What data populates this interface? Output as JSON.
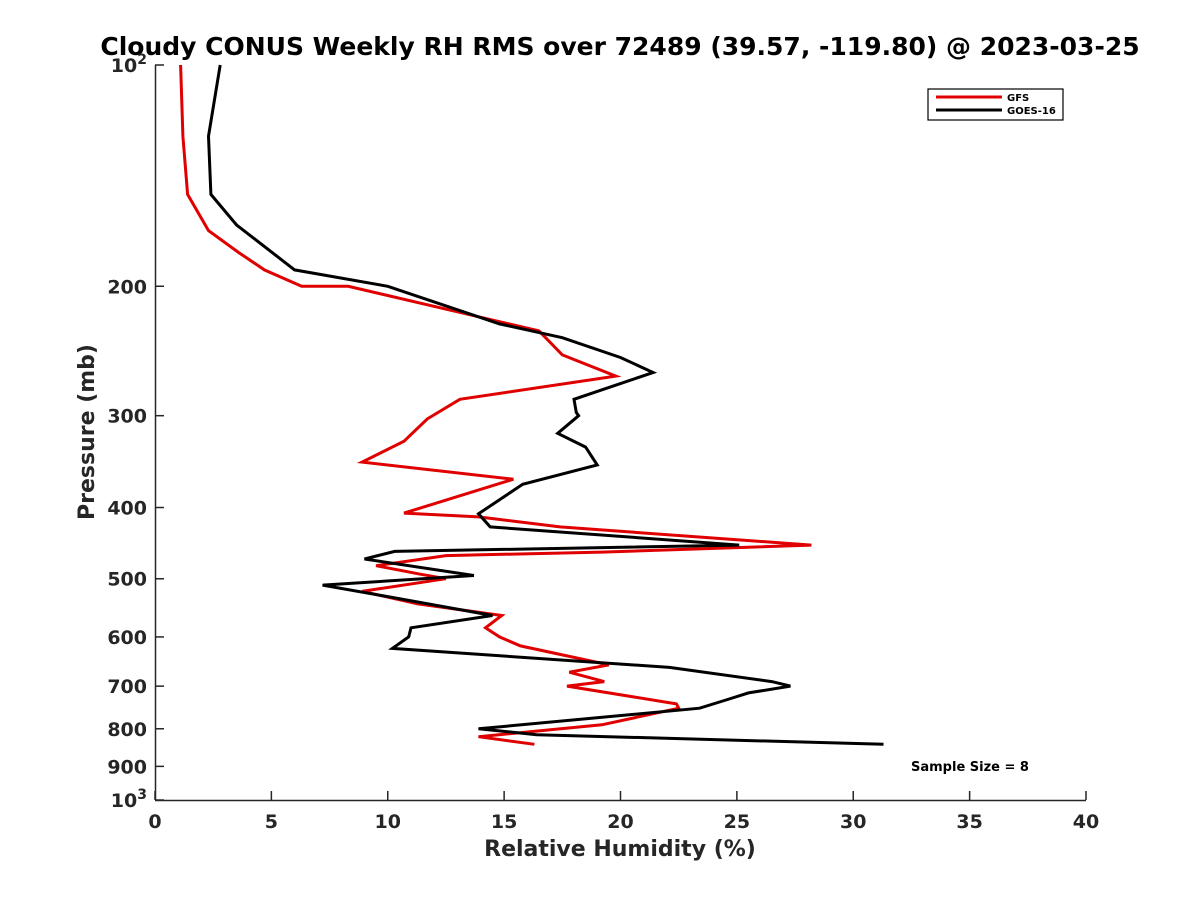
{
  "chart_data": {
    "type": "line",
    "title": "Cloudy CONUS Weekly RH RMS over 72489 (39.57, -119.80) @ 2023-03-25",
    "xlabel": "Relative Humidity (%)",
    "ylabel": "Pressure (mb)",
    "xlim": [
      0,
      40
    ],
    "ylim": [
      100,
      1000
    ],
    "y_scale": "log",
    "y_reversed": true,
    "grid": false,
    "legend_position": "top-right",
    "x_ticks": [
      0,
      5,
      10,
      15,
      20,
      25,
      30,
      35,
      40
    ],
    "x_tick_labels": [
      "0",
      "5",
      "10",
      "15",
      "20",
      "25",
      "30",
      "35",
      "40"
    ],
    "y_ticks": [
      100,
      200,
      300,
      400,
      500,
      600,
      700,
      800,
      900,
      1000
    ],
    "y_tick_labels": [
      {
        "base": "10",
        "exp": "2"
      },
      {
        "base": "200",
        "exp": ""
      },
      {
        "base": "300",
        "exp": ""
      },
      {
        "base": "400",
        "exp": ""
      },
      {
        "base": "500",
        "exp": ""
      },
      {
        "base": "600",
        "exp": ""
      },
      {
        "base": "700",
        "exp": ""
      },
      {
        "base": "800",
        "exp": ""
      },
      {
        "base": "900",
        "exp": ""
      },
      {
        "base": "10",
        "exp": "3"
      }
    ],
    "series": [
      {
        "name": "GFS",
        "color": "#e00000",
        "points": [
          [
            1.1,
            100
          ],
          [
            1.2,
            125
          ],
          [
            1.4,
            150
          ],
          [
            2.3,
            168
          ],
          [
            3.6,
            180
          ],
          [
            4.7,
            190
          ],
          [
            6.3,
            200
          ],
          [
            8.3,
            200
          ],
          [
            16.5,
            230
          ],
          [
            17.5,
            248
          ],
          [
            19.8,
            265
          ],
          [
            13.1,
            285
          ],
          [
            11.7,
            303
          ],
          [
            10.7,
            325
          ],
          [
            8.9,
            347
          ],
          [
            15.4,
            366
          ],
          [
            10.7,
            407
          ],
          [
            13.9,
            412
          ],
          [
            17.4,
            425
          ],
          [
            28.2,
            450
          ],
          [
            19.2,
            460
          ],
          [
            12.5,
            465
          ],
          [
            9.5,
            480
          ],
          [
            11.4,
            493
          ],
          [
            12.5,
            500
          ],
          [
            8.9,
            520
          ],
          [
            11.3,
            541
          ],
          [
            14.9,
            561
          ],
          [
            14.2,
            583
          ],
          [
            14.8,
            600
          ],
          [
            15.7,
            617
          ],
          [
            19.5,
            655
          ],
          [
            17.8,
            670
          ],
          [
            19.3,
            690
          ],
          [
            17.7,
            700
          ],
          [
            22.4,
            740
          ],
          [
            22.5,
            750
          ],
          [
            19.2,
            790
          ],
          [
            13.9,
            820
          ],
          [
            16.3,
            840
          ]
        ]
      },
      {
        "name": "GOES-16",
        "color": "#000000",
        "points": [
          [
            2.8,
            100
          ],
          [
            2.3,
            125
          ],
          [
            2.4,
            150
          ],
          [
            3.5,
            165
          ],
          [
            6.0,
            190
          ],
          [
            10.0,
            200
          ],
          [
            14.8,
            225
          ],
          [
            17.5,
            235
          ],
          [
            20.0,
            250
          ],
          [
            21.4,
            262
          ],
          [
            18.0,
            285
          ],
          [
            18.1,
            297
          ],
          [
            18.2,
            300
          ],
          [
            17.3,
            317
          ],
          [
            18.5,
            331
          ],
          [
            19.0,
            350
          ],
          [
            15.8,
            372
          ],
          [
            13.9,
            408
          ],
          [
            14.4,
            425
          ],
          [
            25.1,
            450
          ],
          [
            10.3,
            459
          ],
          [
            9.0,
            470
          ],
          [
            13.7,
            495
          ],
          [
            7.2,
            510
          ],
          [
            10.6,
            533
          ],
          [
            14.5,
            561
          ],
          [
            11.0,
            583
          ],
          [
            10.9,
            600
          ],
          [
            10.2,
            622
          ],
          [
            22.1,
            660
          ],
          [
            26.5,
            690
          ],
          [
            27.3,
            700
          ],
          [
            25.5,
            715
          ],
          [
            24.6,
            730
          ],
          [
            23.4,
            750
          ],
          [
            13.9,
            800
          ],
          [
            16.4,
            815
          ],
          [
            31.3,
            840
          ]
        ]
      }
    ],
    "annotations": [
      "Sample Size = 8"
    ]
  }
}
